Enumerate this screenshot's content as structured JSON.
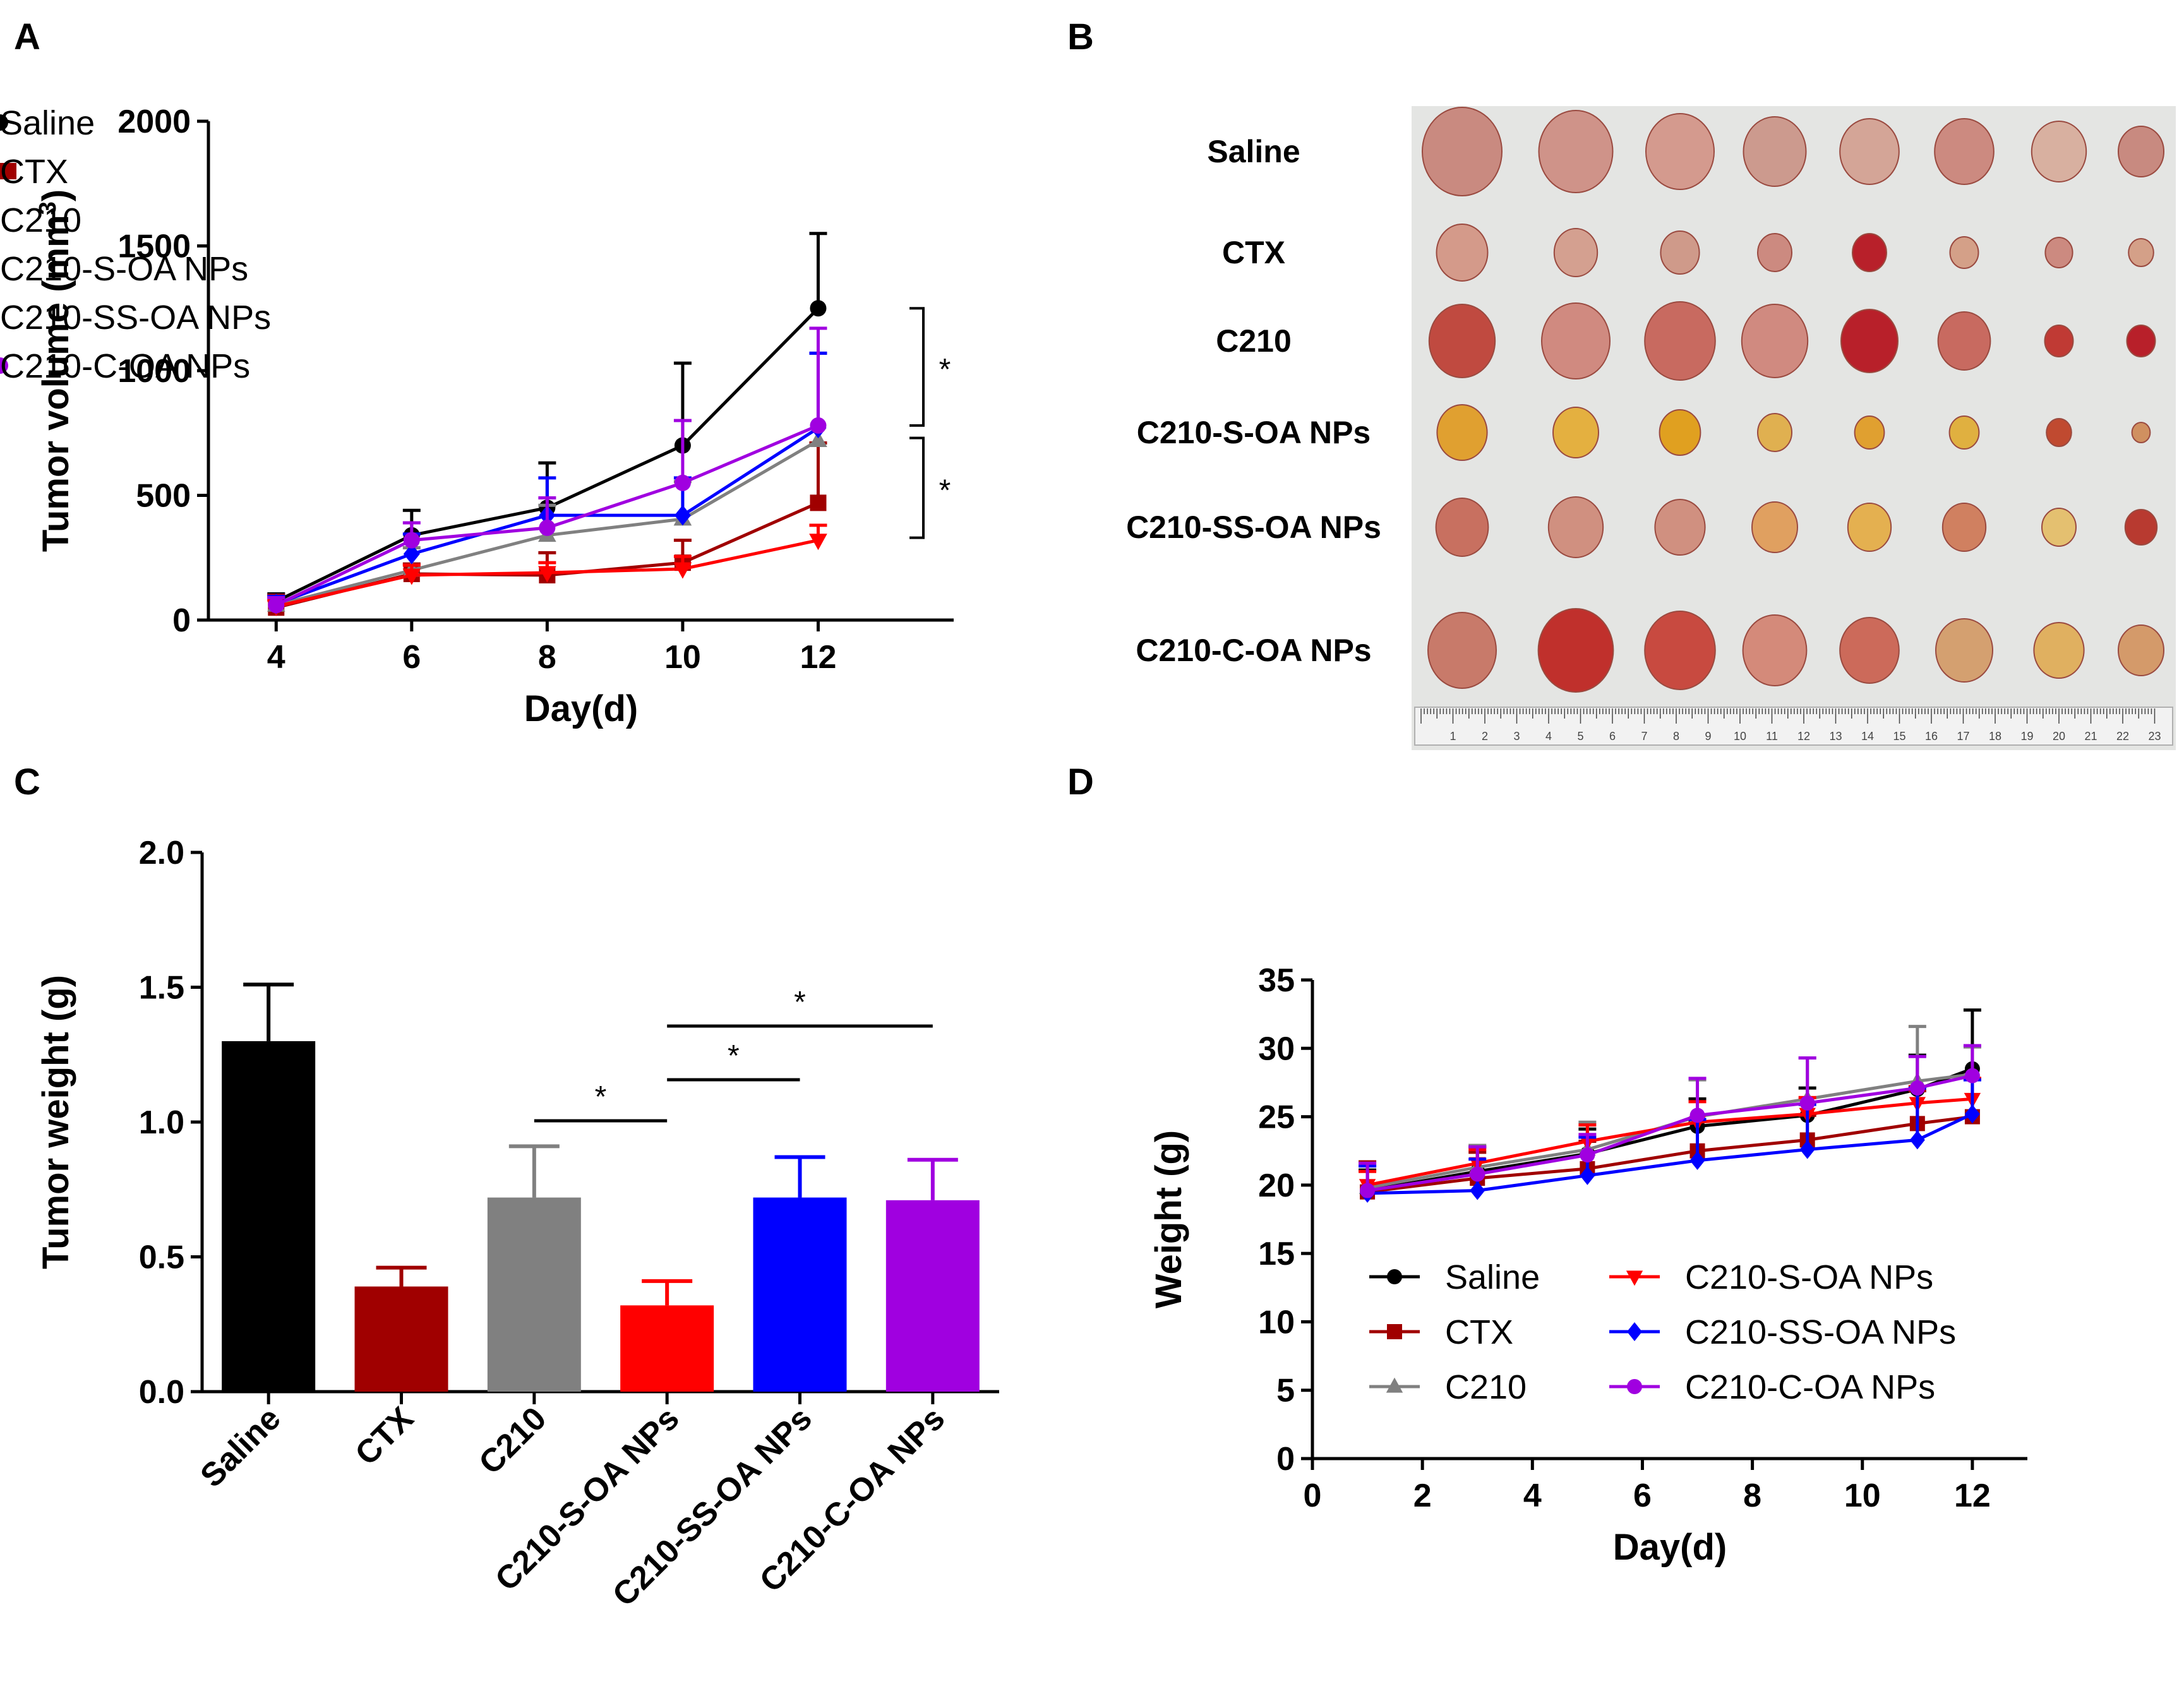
{
  "series_colors": {
    "Saline": "#000000",
    "CTX": "#a00000",
    "C210": "#808080",
    "C210-S-OA NPs": "#ff0000",
    "C210-SS-OA NPs": "#0000ff",
    "C210-C-OA NPs": "#a000e0"
  },
  "chart_data": [
    {
      "panel": "A",
      "type": "line",
      "xlabel": "Day(d)",
      "ylabel": "Tumor volume (mm3)",
      "ylabel_main": "Tumor volume (mm",
      "ylabel_sup": "3",
      "ylabel_close": ")",
      "x": [
        4,
        6,
        8,
        10,
        12
      ],
      "xlim": [
        3,
        14
      ],
      "ylim": [
        0,
        2000
      ],
      "xticks": [
        4,
        6,
        8,
        10,
        12
      ],
      "yticks": [
        0,
        500,
        1000,
        1500,
        2000
      ],
      "series": [
        {
          "name": "Saline",
          "marker": "circle",
          "values": [
            75,
            340,
            450,
            700,
            1250
          ],
          "err": [
            30,
            100,
            180,
            330,
            300
          ]
        },
        {
          "name": "CTX",
          "marker": "square",
          "values": [
            50,
            185,
            180,
            230,
            470
          ],
          "err": [
            50,
            40,
            90,
            90,
            240
          ]
        },
        {
          "name": "C210",
          "marker": "triangle-up",
          "values": [
            60,
            200,
            340,
            405,
            720
          ],
          "err": [
            30,
            90,
            120,
            150,
            350
          ]
        },
        {
          "name": "C210-S-OA NPs",
          "marker": "triangle-down",
          "values": [
            55,
            180,
            190,
            205,
            320
          ],
          "err": [
            25,
            40,
            40,
            50,
            60
          ]
        },
        {
          "name": "C210-SS-OA NPs",
          "marker": "diamond",
          "values": [
            65,
            265,
            420,
            420,
            770
          ],
          "err": [
            30,
            80,
            150,
            150,
            300
          ]
        },
        {
          "name": "C210-C-OA NPs",
          "marker": "circle",
          "values": [
            60,
            320,
            370,
            550,
            780
          ],
          "err": [
            30,
            70,
            120,
            250,
            390
          ]
        }
      ],
      "significance": [
        "*",
        "*"
      ]
    },
    {
      "panel": "C",
      "type": "bar",
      "ylabel": "Tumor weight (g)",
      "categories": [
        "Saline",
        "CTX",
        "C210",
        "C210-S-OA NPs",
        "C210-SS-OA NPs",
        "C210-C-OA NPs"
      ],
      "values": [
        1.3,
        0.39,
        0.72,
        0.32,
        0.72,
        0.71
      ],
      "err": [
        0.21,
        0.07,
        0.19,
        0.09,
        0.15,
        0.15
      ],
      "ylim": [
        0,
        2.0
      ],
      "yticks": [
        "0.0",
        "0.5",
        "1.0",
        "1.5",
        "2.0"
      ],
      "significance": [
        {
          "from": "C210",
          "to": "C210-S-OA NPs",
          "label": "*"
        },
        {
          "from": "C210-S-OA NPs",
          "to": "C210-SS-OA NPs",
          "label": "*"
        },
        {
          "from": "C210-S-OA NPs",
          "to": "C210-C-OA NPs",
          "label": "*"
        }
      ]
    },
    {
      "panel": "D",
      "type": "line",
      "xlabel": "Day(d)",
      "ylabel": "Weight (g)",
      "x": [
        1,
        3,
        5,
        7,
        9,
        11,
        12
      ],
      "xlim": [
        0,
        13
      ],
      "ylim": [
        0,
        35
      ],
      "xticks": [
        0,
        2,
        4,
        6,
        8,
        10,
        12
      ],
      "yticks": [
        0,
        5,
        10,
        15,
        20,
        25,
        30,
        35
      ],
      "series": [
        {
          "name": "Saline",
          "marker": "circle",
          "values": [
            19.6,
            21.0,
            22.3,
            24.3,
            25.1,
            27.0,
            28.5
          ],
          "err": [
            1.5,
            1.8,
            1.8,
            2.0,
            2.0,
            2.5,
            4.3
          ]
        },
        {
          "name": "CTX",
          "marker": "square",
          "values": [
            19.5,
            20.5,
            21.2,
            22.5,
            23.3,
            24.5,
            25.0
          ],
          "err": [
            2.2,
            1.9,
            2.0,
            2.2,
            1.8,
            2.4,
            2.8
          ]
        },
        {
          "name": "C210",
          "marker": "triangle-up",
          "values": [
            19.8,
            21.3,
            22.6,
            25.0,
            26.3,
            27.6,
            28.1
          ],
          "err": [
            1.6,
            1.6,
            2.0,
            2.7,
            3.0,
            4.0,
            2.0
          ]
        },
        {
          "name": "C210-S-OA NPs",
          "marker": "triangle-down",
          "values": [
            20.0,
            21.6,
            23.2,
            24.6,
            25.2,
            26.0,
            26.3
          ],
          "err": [
            1.0,
            1.0,
            1.2,
            1.5,
            1.2,
            1.2,
            1.5
          ]
        },
        {
          "name": "C210-SS-OA NPs",
          "marker": "diamond",
          "values": [
            19.4,
            19.6,
            20.7,
            21.8,
            22.6,
            23.3,
            25.2
          ],
          "err": [
            2.0,
            2.3,
            2.8,
            3.0,
            3.3,
            3.8,
            2.5
          ]
        },
        {
          "name": "C210-C-OA NPs",
          "marker": "circle",
          "values": [
            19.6,
            20.8,
            22.2,
            25.1,
            26.0,
            27.1,
            28.0
          ],
          "err": [
            2.0,
            2.0,
            1.5,
            2.7,
            3.3,
            2.3,
            2.2
          ]
        }
      ]
    }
  ],
  "panel_b": {
    "groups": [
      "Saline",
      "CTX",
      "C210",
      "C210-S-OA NPs",
      "C210-SS-OA NPs",
      "C210-C-OA NPs"
    ],
    "ruler_numbers": [
      "1",
      "2",
      "3",
      "4",
      "5",
      "6",
      "7",
      "8",
      "9",
      "10",
      "11",
      "12",
      "13",
      "14",
      "15",
      "16",
      "17",
      "18",
      "19",
      "20",
      "21",
      "22",
      "23"
    ]
  },
  "panel_labels": {
    "a": "A",
    "b": "B",
    "c": "C",
    "d": "D"
  }
}
